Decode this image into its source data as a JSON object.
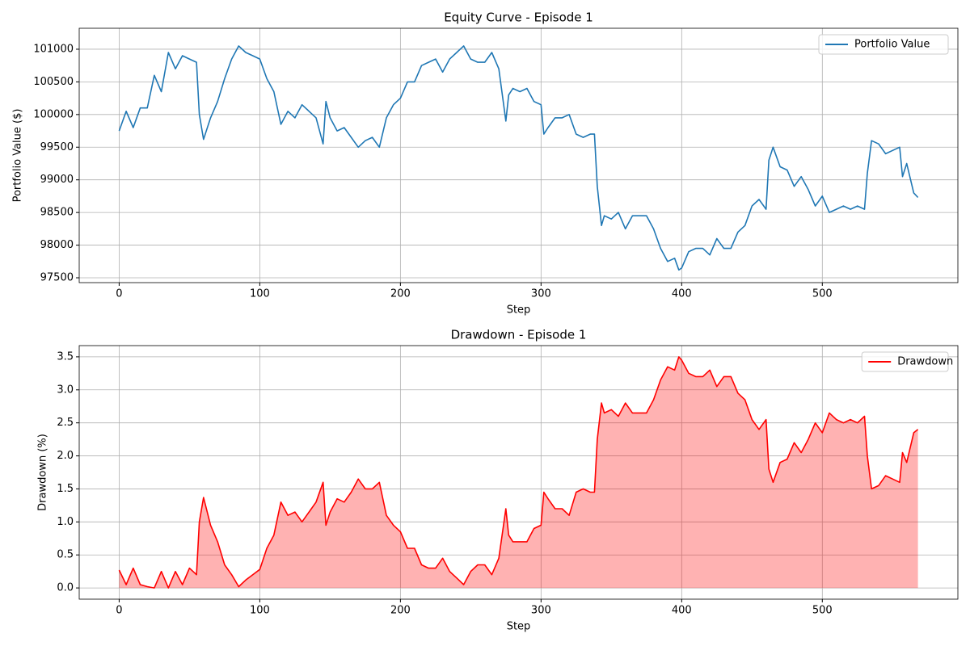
{
  "chart_data": [
    {
      "type": "line",
      "title": "Equity Curve - Episode 1",
      "xlabel": "Step",
      "ylabel": "Portfolio Value ($)",
      "x": [
        0,
        5,
        10,
        15,
        20,
        25,
        30,
        35,
        40,
        45,
        50,
        55,
        57,
        60,
        65,
        70,
        75,
        80,
        85,
        90,
        95,
        100,
        105,
        110,
        115,
        120,
        125,
        130,
        135,
        140,
        145,
        147,
        150,
        155,
        160,
        165,
        170,
        175,
        180,
        185,
        190,
        195,
        200,
        205,
        210,
        215,
        220,
        225,
        230,
        235,
        240,
        245,
        250,
        255,
        260,
        265,
        270,
        275,
        277,
        280,
        285,
        290,
        295,
        300,
        302,
        305,
        310,
        315,
        320,
        325,
        330,
        335,
        338,
        340,
        343,
        345,
        350,
        355,
        360,
        365,
        370,
        375,
        380,
        385,
        390,
        395,
        398,
        400,
        405,
        410,
        415,
        420,
        425,
        430,
        435,
        440,
        445,
        450,
        455,
        460,
        462,
        465,
        470,
        475,
        480,
        485,
        490,
        495,
        500,
        505,
        510,
        515,
        520,
        525,
        530,
        532,
        535,
        540,
        545,
        550,
        555,
        557,
        560,
        565,
        568
      ],
      "series": [
        {
          "name": "Portfolio Value",
          "color": "#1f77b4",
          "values": [
            99750,
            100050,
            99800,
            100100,
            100100,
            100600,
            100350,
            100950,
            100700,
            100900,
            100850,
            100800,
            100000,
            99620,
            99950,
            100200,
            100550,
            100850,
            101050,
            100950,
            100900,
            100850,
            100550,
            100350,
            99850,
            100050,
            99950,
            100150,
            100050,
            99950,
            99550,
            100200,
            99950,
            99750,
            99800,
            99650,
            99500,
            99600,
            99650,
            99500,
            99950,
            100150,
            100250,
            100500,
            100500,
            100750,
            100800,
            100850,
            100650,
            100850,
            100950,
            101050,
            100850,
            100800,
            100800,
            100950,
            100700,
            99900,
            100300,
            100400,
            100350,
            100400,
            100200,
            100150,
            99700,
            99800,
            99950,
            99950,
            100000,
            99700,
            99650,
            99700,
            99700,
            98900,
            98300,
            98450,
            98400,
            98500,
            98250,
            98450,
            98450,
            98450,
            98250,
            97950,
            97750,
            97800,
            97620,
            97650,
            97900,
            97950,
            97950,
            97850,
            98100,
            97950,
            97950,
            98200,
            98300,
            98600,
            98700,
            98550,
            99300,
            99500,
            99200,
            99150,
            98900,
            99050,
            98850,
            98600,
            98750,
            98500,
            98550,
            98600,
            98550,
            98600,
            98550,
            99100,
            99600,
            99550,
            99400,
            99450,
            99500,
            99050,
            99250,
            98800,
            98730
          ]
        }
      ],
      "xlim": [
        -28.4,
        596.4
      ],
      "ylim": [
        97426,
        101321
      ],
      "xticks": [
        0,
        100,
        200,
        300,
        400,
        500
      ],
      "yticks": [
        97500,
        98000,
        98500,
        99000,
        99500,
        100000,
        100500,
        101000
      ],
      "grid": true,
      "legend": "upper right"
    },
    {
      "type": "area",
      "title": "Drawdown - Episode 1",
      "xlabel": "Step",
      "ylabel": "Drawdown (%)",
      "x": [
        0,
        5,
        10,
        15,
        20,
        25,
        30,
        35,
        40,
        45,
        50,
        55,
        57,
        60,
        65,
        70,
        75,
        80,
        85,
        90,
        95,
        100,
        105,
        110,
        115,
        120,
        125,
        130,
        135,
        140,
        145,
        147,
        150,
        155,
        160,
        165,
        170,
        175,
        180,
        185,
        190,
        195,
        200,
        205,
        210,
        215,
        220,
        225,
        230,
        235,
        240,
        245,
        250,
        255,
        260,
        265,
        270,
        275,
        277,
        280,
        285,
        290,
        295,
        300,
        302,
        305,
        310,
        315,
        320,
        325,
        330,
        335,
        338,
        340,
        343,
        345,
        350,
        355,
        360,
        365,
        370,
        375,
        380,
        385,
        390,
        395,
        398,
        400,
        405,
        410,
        415,
        420,
        425,
        430,
        435,
        440,
        445,
        450,
        455,
        460,
        462,
        465,
        470,
        475,
        480,
        485,
        490,
        495,
        500,
        505,
        510,
        515,
        520,
        525,
        530,
        532,
        535,
        540,
        545,
        550,
        555,
        557,
        560,
        565,
        568
      ],
      "series": [
        {
          "name": "Drawdown",
          "color": "#ff0000",
          "values": [
            0.27,
            0.05,
            0.3,
            0.05,
            0.02,
            0.0,
            0.25,
            0.0,
            0.25,
            0.05,
            0.3,
            0.2,
            1.0,
            1.37,
            0.95,
            0.7,
            0.35,
            0.2,
            0.02,
            0.12,
            0.2,
            0.28,
            0.6,
            0.8,
            1.3,
            1.1,
            1.15,
            1.0,
            1.15,
            1.3,
            1.6,
            0.95,
            1.15,
            1.35,
            1.3,
            1.45,
            1.65,
            1.5,
            1.5,
            1.6,
            1.1,
            0.95,
            0.85,
            0.6,
            0.6,
            0.35,
            0.3,
            0.3,
            0.45,
            0.25,
            0.15,
            0.05,
            0.25,
            0.35,
            0.35,
            0.2,
            0.45,
            1.2,
            0.8,
            0.7,
            0.7,
            0.7,
            0.9,
            0.95,
            1.45,
            1.35,
            1.2,
            1.2,
            1.1,
            1.45,
            1.5,
            1.45,
            1.45,
            2.25,
            2.8,
            2.65,
            2.7,
            2.6,
            2.8,
            2.65,
            2.65,
            2.65,
            2.85,
            3.15,
            3.35,
            3.3,
            3.5,
            3.45,
            3.25,
            3.2,
            3.2,
            3.3,
            3.05,
            3.2,
            3.2,
            2.95,
            2.85,
            2.55,
            2.4,
            2.55,
            1.8,
            1.6,
            1.9,
            1.95,
            2.2,
            2.05,
            2.25,
            2.5,
            2.35,
            2.65,
            2.55,
            2.5,
            2.55,
            2.5,
            2.6,
            2.0,
            1.5,
            1.55,
            1.7,
            1.65,
            1.6,
            2.05,
            1.9,
            2.35,
            2.4
          ]
        }
      ],
      "xlim": [
        -28.4,
        596.4
      ],
      "ylim": [
        -0.17,
        3.67
      ],
      "xticks": [
        0,
        100,
        200,
        300,
        400,
        500
      ],
      "yticks": [
        {
          "value": 0,
          "label": "0.0"
        },
        0.5,
        {
          "value": 1,
          "label": "1.0"
        },
        1.5,
        {
          "value": 2,
          "label": "2.0"
        },
        2.5,
        {
          "value": 3,
          "label": "3.0"
        },
        3.5
      ],
      "grid": true,
      "legend": "upper right"
    }
  ]
}
